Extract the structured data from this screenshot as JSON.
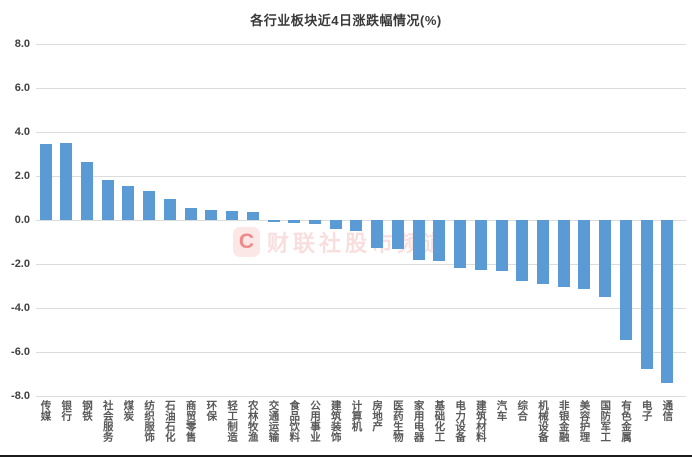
{
  "title": "各行业板块近4日涨跌幅情况(%)",
  "watermark": {
    "logo_letter": "C",
    "text": "财联社股市频道",
    "brand_color": "#EF8A8A"
  },
  "colors": {
    "bar": "#5B9BD5",
    "grid": "#DCDCDC",
    "axis_text": "#404040",
    "category_text": "#595959",
    "title_text": "#3A3A3A"
  },
  "chart_data": {
    "type": "bar",
    "title": "各行业板块近4日涨跌幅情况(%)",
    "xlabel": "",
    "ylabel": "",
    "ylim": [
      -8.0,
      8.0
    ],
    "grid": true,
    "legend": false,
    "y_tick_labels": [
      "8.0",
      "6.0",
      "4.0",
      "2.0",
      "0.0",
      "-2.0",
      "-4.0",
      "-6.0",
      "-8.0"
    ],
    "y_ticks": [
      8,
      6,
      4,
      2,
      0,
      -2,
      -4,
      -6,
      -8
    ],
    "categories": [
      "传媒",
      "银行",
      "钢铁",
      "社会服务",
      "煤炭",
      "纺织服饰",
      "石油石化",
      "商贸零售",
      "环保",
      "轻工制造",
      "农林牧渔",
      "交通运输",
      "食品饮料",
      "公用事业",
      "建筑装饰",
      "计算机",
      "房地产",
      "医药生物",
      "家用电器",
      "基础化工",
      "电力设备",
      "建筑材料",
      "汽车",
      "综合",
      "机械设备",
      "非银金融",
      "美容护理",
      "国防军工",
      "有色金属",
      "电子",
      "通信"
    ],
    "values": [
      3.45,
      3.5,
      2.65,
      1.8,
      1.55,
      1.3,
      0.95,
      0.55,
      0.45,
      0.4,
      0.35,
      -0.1,
      -0.15,
      -0.2,
      -0.4,
      -0.5,
      -1.25,
      -1.3,
      -1.8,
      -1.85,
      -2.2,
      -2.25,
      -2.3,
      -2.75,
      -2.9,
      -3.05,
      -3.15,
      -3.5,
      -5.45,
      -6.75,
      -7.4
    ]
  }
}
